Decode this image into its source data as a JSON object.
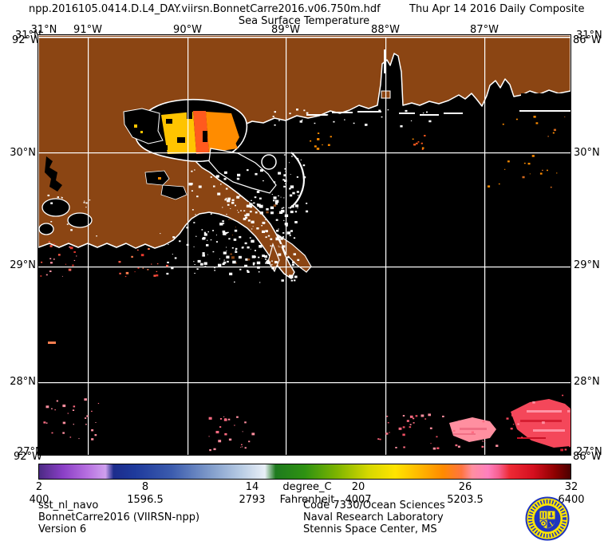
{
  "header": {
    "filename": "npp.2016105.0414.D.L4_DAY.viirsn.BonnetCarre2016.v06.750m.hdf",
    "date_label": "Thu Apr 14 2016 Daily Composite",
    "subtitle": "Sea Surface Temperature"
  },
  "map": {
    "top_lat_label": "31°N",
    "lon_labels": [
      "91°W",
      "90°W",
      "89°W",
      "88°W",
      "87°W"
    ],
    "lat_labels": [
      "30°N",
      "29°N",
      "28°N"
    ],
    "corner_labels": {
      "top_left": [
        "31°N",
        "92°W"
      ],
      "top_right": [
        "31°N",
        "86°W"
      ],
      "bottom_left": [
        "27°N",
        "92°W"
      ],
      "bottom_right": [
        "27°N",
        "86°W"
      ]
    },
    "colors": {
      "land": "#8B4513",
      "no_data": "#000000",
      "coastline": "#ffffff",
      "grid": "#ffffff",
      "sst_yellow": "#FFC400",
      "sst_orange": "#FF8C00",
      "sst_deep_orange": "#FF5A1E",
      "sst_salmon": "#FF8FA0",
      "sst_pink": "#FF6B81",
      "sst_red": "#F4475A",
      "sst_dark_red": "#D61F33"
    }
  },
  "colorbar": {
    "unit_top": "degree_C",
    "unit_bottom": "Fahrenheit",
    "celsius_ticks": [
      "2",
      "8",
      "14",
      "20",
      "26",
      "32"
    ],
    "fahrenheit_ticks": [
      "400",
      "1596.5",
      "2793",
      "4007",
      "5203.5",
      "6400"
    ],
    "gradient_stops": [
      {
        "p": 0.0,
        "c": "#4B2A84"
      },
      {
        "p": 0.045,
        "c": "#8A3FC6"
      },
      {
        "p": 0.09,
        "c": "#B66FE0"
      },
      {
        "p": 0.125,
        "c": "#CFA0EE"
      },
      {
        "p": 0.14,
        "c": "#1C2C8C"
      },
      {
        "p": 0.18,
        "c": "#1E3A9C"
      },
      {
        "p": 0.25,
        "c": "#3C5CAE"
      },
      {
        "p": 0.32,
        "c": "#7E9ACA"
      },
      {
        "p": 0.38,
        "c": "#B8CCE4"
      },
      {
        "p": 0.425,
        "c": "#E9EFF7"
      },
      {
        "p": 0.445,
        "c": "#1E7A1E"
      },
      {
        "p": 0.5,
        "c": "#2E9212"
      },
      {
        "p": 0.56,
        "c": "#7DB400"
      },
      {
        "p": 0.62,
        "c": "#D6D800"
      },
      {
        "p": 0.67,
        "c": "#FFE400"
      },
      {
        "p": 0.72,
        "c": "#FFB300"
      },
      {
        "p": 0.76,
        "c": "#FF8A00"
      },
      {
        "p": 0.795,
        "c": "#FF7540"
      },
      {
        "p": 0.815,
        "c": "#FF8FA0"
      },
      {
        "p": 0.845,
        "c": "#FF7FBE"
      },
      {
        "p": 0.865,
        "c": "#F75F8F"
      },
      {
        "p": 0.885,
        "c": "#EE2A35"
      },
      {
        "p": 0.93,
        "c": "#D40F1F"
      },
      {
        "p": 0.97,
        "c": "#8F0000"
      },
      {
        "p": 1.0,
        "c": "#4A0000"
      }
    ]
  },
  "footer": {
    "left": [
      "sst_nl_navo",
      "BonnetCarre2016 (VIIRSN-npp)",
      "Version 6"
    ],
    "right": [
      "Code 7330/Ocean Sciences",
      "Naval Research Laboratory",
      "Stennis Space Center, MS"
    ]
  },
  "logo": {
    "name": "NRL seal",
    "band_color": "#FFE600",
    "emblem_color": "#1F35C0"
  }
}
